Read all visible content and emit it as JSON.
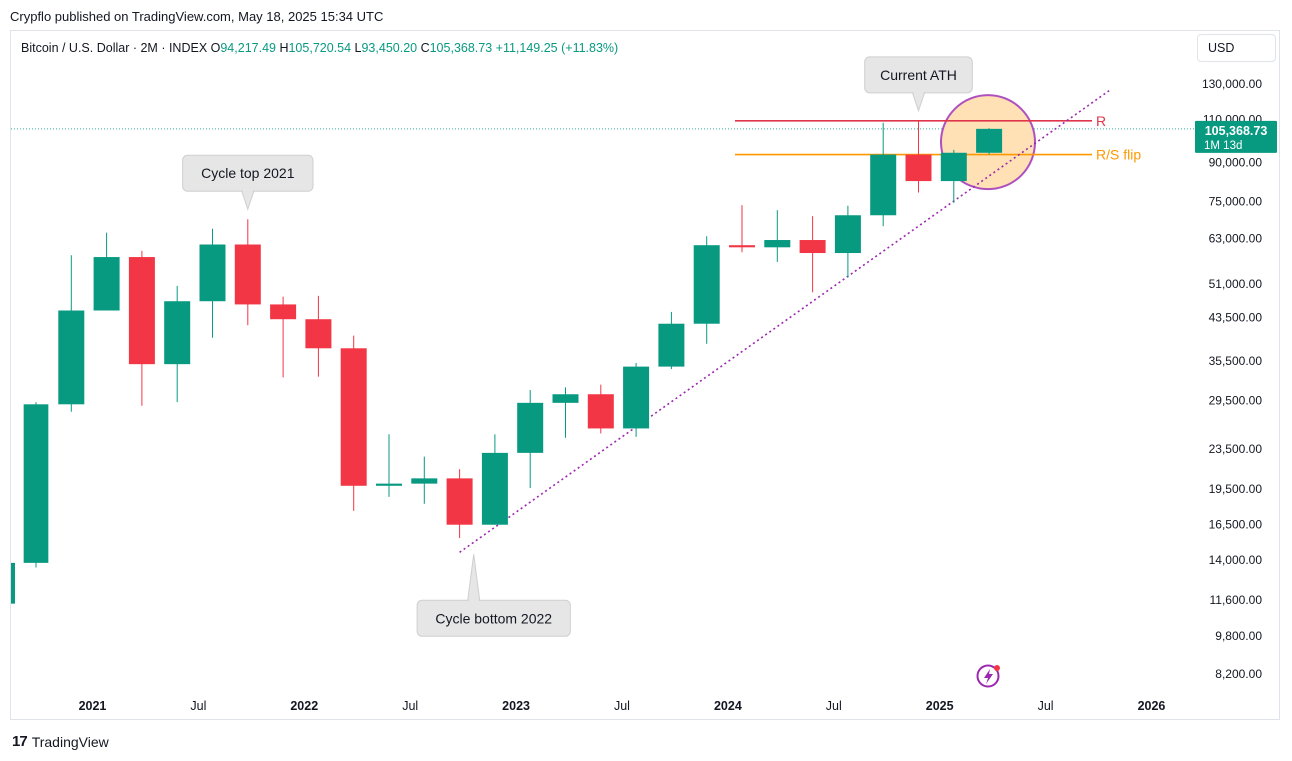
{
  "header": {
    "published": "Crypflo published on TradingView.com, May 18, 2025 15:34 UTC"
  },
  "symbol": {
    "name": "Bitcoin / U.S. Dollar · 2M · INDEX",
    "open_label": "O",
    "open": "94,217.49",
    "high_label": "H",
    "high": "105,720.54",
    "low_label": "L",
    "low": "93,450.20",
    "close_label": "C",
    "close": "105,368.73",
    "change": "+11,149.25 (+11.83%)"
  },
  "currency_button": "USD",
  "price_tag": {
    "price": "105,368.73",
    "countdown": "1M 13d"
  },
  "footer": {
    "brand": "TradingView",
    "logo_glyph": "17"
  },
  "colors": {
    "up": "#089981",
    "down": "#f23645",
    "resistance": "#e0364c",
    "flip": "#ff9800",
    "trend": "#9c27b0",
    "circle_fill": "#ffe0b2",
    "circle_stroke": "#ab47bc"
  },
  "chart_data": {
    "type": "candlestick",
    "scale": "log",
    "interval": "2M",
    "yticks": [
      "130,000.00",
      "110,000.00",
      "90,000.00",
      "75,000.00",
      "63,000.00",
      "51,000.00",
      "43,500.00",
      "35,500.00",
      "29,500.00",
      "23,500.00",
      "19,500.00",
      "16,500.00",
      "14,000.00",
      "11,600.00",
      "9,800.00",
      "8,200.00"
    ],
    "ytick_values": [
      130000,
      110000,
      90000,
      75000,
      63000,
      51000,
      43500,
      35500,
      29500,
      23500,
      19500,
      16500,
      14000,
      11600,
      9800,
      8200
    ],
    "xticks": [
      {
        "label": "2021",
        "bold": true,
        "idx": 1.6
      },
      {
        "label": "Jul",
        "bold": false,
        "idx": 4.6
      },
      {
        "label": "2022",
        "bold": true,
        "idx": 7.6
      },
      {
        "label": "Jul",
        "bold": false,
        "idx": 10.6
      },
      {
        "label": "2023",
        "bold": true,
        "idx": 13.6
      },
      {
        "label": "Jul",
        "bold": false,
        "idx": 16.6
      },
      {
        "label": "2024",
        "bold": true,
        "idx": 19.6
      },
      {
        "label": "Jul",
        "bold": false,
        "idx": 22.6
      },
      {
        "label": "2025",
        "bold": true,
        "idx": 25.6
      },
      {
        "label": "Jul",
        "bold": false,
        "idx": 28.6
      },
      {
        "label": "2026",
        "bold": true,
        "idx": 31.6
      }
    ],
    "candles": [
      {
        "o": 13800,
        "h": 29300,
        "l": 13500,
        "c": 29000
      },
      {
        "o": 29000,
        "h": 58300,
        "l": 28000,
        "c": 45000
      },
      {
        "o": 45000,
        "h": 64800,
        "l": 45000,
        "c": 57800
      },
      {
        "o": 57800,
        "h": 59500,
        "l": 28800,
        "c": 35000
      },
      {
        "o": 35000,
        "h": 50500,
        "l": 29300,
        "c": 47000
      },
      {
        "o": 47000,
        "h": 66000,
        "l": 39600,
        "c": 61300
      },
      {
        "o": 61300,
        "h": 69000,
        "l": 42000,
        "c": 46300
      },
      {
        "o": 46300,
        "h": 48000,
        "l": 32900,
        "c": 43200
      },
      {
        "o": 43200,
        "h": 48200,
        "l": 33000,
        "c": 37700
      },
      {
        "o": 37700,
        "h": 40000,
        "l": 17600,
        "c": 19800
      },
      {
        "o": 19800,
        "h": 25200,
        "l": 18800,
        "c": 20000
      },
      {
        "o": 20000,
        "h": 22700,
        "l": 18200,
        "c": 20500
      },
      {
        "o": 20500,
        "h": 21400,
        "l": 15500,
        "c": 16500
      },
      {
        "o": 16500,
        "h": 25200,
        "l": 16500,
        "c": 23100
      },
      {
        "o": 23100,
        "h": 31000,
        "l": 19600,
        "c": 29200
      },
      {
        "o": 29200,
        "h": 31400,
        "l": 24800,
        "c": 30400
      },
      {
        "o": 30400,
        "h": 31800,
        "l": 25300,
        "c": 25900
      },
      {
        "o": 25900,
        "h": 35200,
        "l": 24900,
        "c": 34600
      },
      {
        "o": 34600,
        "h": 44700,
        "l": 34200,
        "c": 42300
      },
      {
        "o": 42300,
        "h": 63700,
        "l": 38500,
        "c": 61100
      },
      {
        "o": 61100,
        "h": 73700,
        "l": 59100,
        "c": 60500
      },
      {
        "o": 60500,
        "h": 72000,
        "l": 56500,
        "c": 62600
      },
      {
        "o": 62600,
        "h": 70000,
        "l": 49000,
        "c": 58900
      },
      {
        "o": 58900,
        "h": 73500,
        "l": 52500,
        "c": 70300
      },
      {
        "o": 70300,
        "h": 108400,
        "l": 66800,
        "c": 93400
      },
      {
        "o": 93400,
        "h": 109400,
        "l": 78200,
        "c": 82500
      },
      {
        "o": 82500,
        "h": 95500,
        "l": 74500,
        "c": 94200
      },
      {
        "o": 94200,
        "h": 105700,
        "l": 93450,
        "c": 105368
      }
    ],
    "horizontal_lines": [
      {
        "label": "R",
        "price": 109400,
        "start_idx": 20
      },
      {
        "label": "R/S flip",
        "price": 93400,
        "start_idx": 20
      }
    ],
    "trendline": {
      "start_idx": 12,
      "start_price": 14500,
      "end_idx": 30.4,
      "end_price": 126000
    },
    "callouts": [
      {
        "text": "Cycle top 2021",
        "idx": 6,
        "price": 69000,
        "direction": "up"
      },
      {
        "text": "Current ATH",
        "idx": 25,
        "price": 109400,
        "direction": "up"
      },
      {
        "text": "Cycle bottom 2022",
        "idx": 12.4,
        "price": 14500,
        "direction": "down"
      }
    ],
    "current_price": 105368.73
  }
}
